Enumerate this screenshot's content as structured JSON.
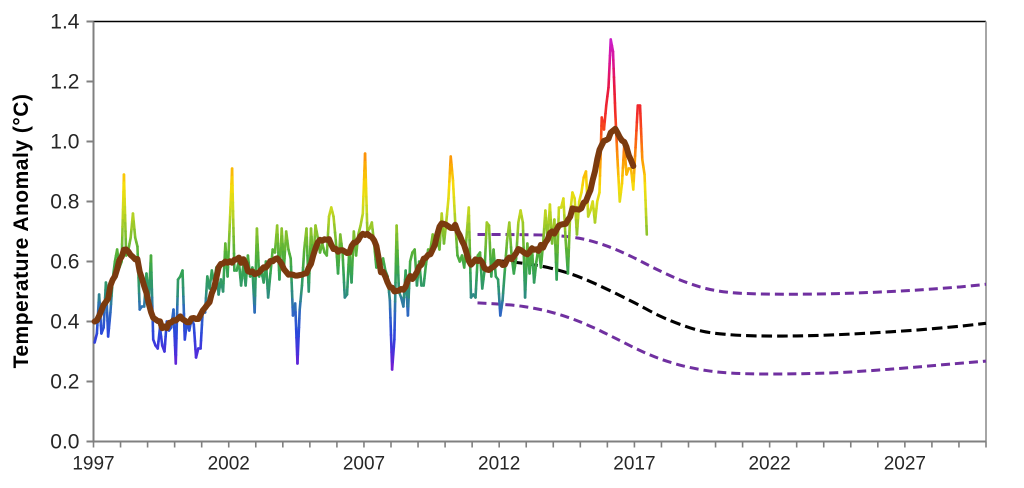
{
  "figure": {
    "kind": "line-chart",
    "background": "#FFFFFF",
    "title": ""
  },
  "colors": {
    "axis_line": "#808080",
    "tick_label": "#262626",
    "axis_title": "#000000",
    "plot_border_top": "#000000",
    "plot_border_right": "#A6A6A6",
    "smoothed_line": "#7B3A0F",
    "forecast_band": "#7030A0",
    "forecast_central": "#000000"
  },
  "chart_data": {
    "type": "line",
    "title": "",
    "legend": "none",
    "grid": "off",
    "x_axis": {
      "range": [
        1997,
        2030
      ],
      "minor_tick_interval_years": 1,
      "labeled_tick_years": [
        1997,
        2002,
        2007,
        2012,
        2017,
        2022,
        2027
      ]
    },
    "y_axis": {
      "label": "Temperature  Anomaly (°C)",
      "range": [
        0,
        1.4
      ],
      "tick_step": 0.2,
      "tick_labels": [
        "0.0",
        "0.2",
        "0.4",
        "0.6",
        "0.8",
        "1.0",
        "1.2",
        "1.4"
      ]
    },
    "value_color_stops": [
      [
        0.22,
        "#8B12CE"
      ],
      [
        0.3,
        "#4A30DC"
      ],
      [
        0.36,
        "#2B47DC"
      ],
      [
        0.44,
        "#2E6BBF"
      ],
      [
        0.5,
        "#2E9277"
      ],
      [
        0.56,
        "#35A355"
      ],
      [
        0.62,
        "#4FAF3A"
      ],
      [
        0.7,
        "#8CC32C"
      ],
      [
        0.78,
        "#CFDB1F"
      ],
      [
        0.85,
        "#F7DC0A"
      ],
      [
        0.92,
        "#FCA805"
      ],
      [
        1.0,
        "#FB6711"
      ],
      [
        1.08,
        "#F43124"
      ],
      [
        1.18,
        "#E8173F"
      ],
      [
        1.26,
        "#DC1490"
      ],
      [
        1.35,
        "#C71FD6"
      ]
    ],
    "series": [
      {
        "name": "monthly-temperature-anomaly",
        "style": "value-colored-line",
        "interval": "monthly",
        "start": "1997-01",
        "end": "2017-06",
        "values": [
          0.33,
          0.36,
          0.49,
          0.36,
          0.38,
          0.53,
          0.35,
          0.43,
          0.54,
          0.6,
          0.64,
          0.58,
          0.6,
          0.89,
          0.62,
          0.64,
          0.68,
          0.76,
          0.68,
          0.65,
          0.44,
          0.45,
          0.45,
          0.56,
          0.47,
          0.62,
          0.34,
          0.32,
          0.31,
          0.38,
          0.32,
          0.3,
          0.4,
          0.37,
          0.38,
          0.44,
          0.26,
          0.54,
          0.55,
          0.57,
          0.34,
          0.4,
          0.37,
          0.41,
          0.39,
          0.28,
          0.31,
          0.31,
          0.44,
          0.43,
          0.55,
          0.51,
          0.57,
          0.53,
          0.58,
          0.49,
          0.54,
          0.5,
          0.66,
          0.55,
          0.73,
          0.91,
          0.57,
          0.57,
          0.6,
          0.52,
          0.59,
          0.52,
          0.62,
          0.55,
          0.58,
          0.43,
          0.71,
          0.55,
          0.57,
          0.53,
          0.6,
          0.48,
          0.56,
          0.64,
          0.63,
          0.72,
          0.54,
          0.71,
          0.58,
          0.7,
          0.64,
          0.61,
          0.42,
          0.46,
          0.26,
          0.44,
          0.52,
          0.64,
          0.71,
          0.5,
          0.71,
          0.6,
          0.72,
          0.68,
          0.63,
          0.66,
          0.63,
          0.62,
          0.75,
          0.78,
          0.75,
          0.67,
          0.56,
          0.69,
          0.63,
          0.48,
          0.49,
          0.64,
          0.53,
          0.7,
          0.62,
          0.69,
          0.72,
          0.76,
          0.96,
          0.7,
          0.71,
          0.73,
          0.66,
          0.58,
          0.59,
          0.58,
          0.61,
          0.57,
          0.55,
          0.47,
          0.24,
          0.34,
          0.72,
          0.5,
          0.48,
          0.45,
          0.57,
          0.42,
          0.6,
          0.63,
          0.64,
          0.52,
          0.6,
          0.52,
          0.52,
          0.59,
          0.64,
          0.64,
          0.69,
          0.65,
          0.68,
          0.64,
          0.76,
          0.66,
          0.73,
          0.81,
          0.95,
          0.87,
          0.73,
          0.62,
          0.6,
          0.62,
          0.58,
          0.68,
          0.78,
          0.48,
          0.49,
          0.48,
          0.62,
          0.63,
          0.51,
          0.57,
          0.73,
          0.72,
          0.55,
          0.64,
          0.55,
          0.54,
          0.42,
          0.47,
          0.57,
          0.67,
          0.73,
          0.62,
          0.56,
          0.61,
          0.73,
          0.77,
          0.73,
          0.48,
          0.66,
          0.56,
          0.65,
          0.53,
          0.6,
          0.65,
          0.58,
          0.66,
          0.77,
          0.67,
          0.79,
          0.66,
          0.74,
          0.54,
          0.78,
          0.78,
          0.81,
          0.67,
          0.56,
          0.76,
          0.83,
          0.81,
          0.69,
          0.8,
          0.83,
          0.88,
          0.9,
          0.75,
          0.77,
          0.8,
          0.73,
          0.8,
          0.83,
          1.08,
          1.04,
          1.12,
          1.18,
          1.34,
          1.3,
          1.1,
          0.94,
          0.8,
          0.86,
          0.99,
          0.89,
          0.91,
          0.91,
          0.84,
          0.98,
          1.12,
          1.12,
          0.94,
          0.89,
          0.69
        ]
      },
      {
        "name": "smoothed-13-month-mean",
        "style": "thick-line",
        "derived_from": "monthly-temperature-anomaly",
        "window_months": 13,
        "color": "#7B3A0F"
      },
      {
        "name": "forecast-central",
        "style": "dashed-line",
        "color": "#000000",
        "points": [
          [
            2011.9,
            0.603
          ],
          [
            2012.8,
            0.595
          ],
          [
            2013.8,
            0.58
          ],
          [
            2014.7,
            0.557
          ],
          [
            2015.5,
            0.528
          ],
          [
            2016.3,
            0.494
          ],
          [
            2017.1,
            0.458
          ],
          [
            2017.9,
            0.42
          ],
          [
            2018.7,
            0.39
          ],
          [
            2019.5,
            0.368
          ],
          [
            2020.4,
            0.357
          ],
          [
            2021.5,
            0.352
          ],
          [
            2023.0,
            0.352
          ],
          [
            2024.5,
            0.356
          ],
          [
            2026.0,
            0.363
          ],
          [
            2027.5,
            0.372
          ],
          [
            2029.0,
            0.384
          ],
          [
            2030.0,
            0.394
          ]
        ]
      },
      {
        "name": "forecast-upper-bound",
        "style": "dashed-line",
        "color": "#7030A0",
        "points": [
          [
            2011.2,
            0.69
          ],
          [
            2012.2,
            0.69
          ],
          [
            2013.2,
            0.689
          ],
          [
            2014.2,
            0.686
          ],
          [
            2015.1,
            0.675
          ],
          [
            2016.0,
            0.651
          ],
          [
            2016.9,
            0.616
          ],
          [
            2017.8,
            0.575
          ],
          [
            2018.7,
            0.538
          ],
          [
            2019.6,
            0.511
          ],
          [
            2020.5,
            0.497
          ],
          [
            2021.6,
            0.492
          ],
          [
            2023.0,
            0.491
          ],
          [
            2024.5,
            0.493
          ],
          [
            2026.0,
            0.498
          ],
          [
            2027.5,
            0.505
          ],
          [
            2029.0,
            0.515
          ],
          [
            2030.0,
            0.524
          ]
        ]
      },
      {
        "name": "forecast-lower-bound",
        "style": "dashed-line",
        "color": "#7030A0",
        "points": [
          [
            2011.2,
            0.462
          ],
          [
            2012.0,
            0.458
          ],
          [
            2012.9,
            0.45
          ],
          [
            2013.8,
            0.434
          ],
          [
            2014.7,
            0.409
          ],
          [
            2015.5,
            0.379
          ],
          [
            2016.3,
            0.344
          ],
          [
            2017.1,
            0.308
          ],
          [
            2017.9,
            0.277
          ],
          [
            2018.8,
            0.252
          ],
          [
            2019.7,
            0.236
          ],
          [
            2020.6,
            0.228
          ],
          [
            2021.8,
            0.225
          ],
          [
            2023.2,
            0.226
          ],
          [
            2024.6,
            0.23
          ],
          [
            2026.0,
            0.238
          ],
          [
            2027.4,
            0.248
          ],
          [
            2028.8,
            0.259
          ],
          [
            2030.0,
            0.268
          ]
        ]
      }
    ]
  }
}
